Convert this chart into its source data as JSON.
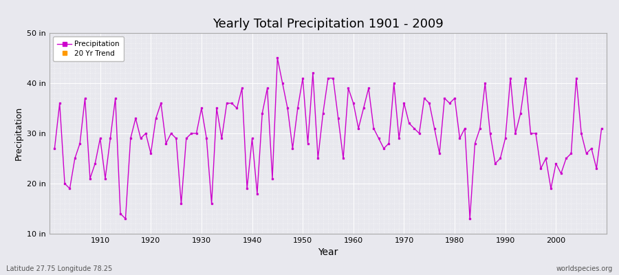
{
  "title": "Yearly Total Precipitation 1901 - 2009",
  "xlabel": "Year",
  "ylabel": "Precipitation",
  "ylim": [
    10,
    50
  ],
  "yticks": [
    10,
    20,
    30,
    40,
    50
  ],
  "ytick_labels": [
    "10 in",
    "20 in",
    "30 in",
    "40 in",
    "50 in"
  ],
  "bg_color": "#e8e8ee",
  "grid_color": "#ffffff",
  "line_color": "#cc00cc",
  "trend_color": "#ff9900",
  "footnote_left": "Latitude 27.75 Longitude 78.25",
  "footnote_right": "worldspecies.org",
  "legend_labels": [
    "Precipitation",
    "20 Yr Trend"
  ],
  "legend_colors": [
    "#cc00cc",
    "#ff9900"
  ],
  "years": [
    1901,
    1902,
    1903,
    1904,
    1905,
    1906,
    1907,
    1908,
    1909,
    1910,
    1911,
    1912,
    1913,
    1914,
    1915,
    1916,
    1917,
    1918,
    1919,
    1920,
    1921,
    1922,
    1923,
    1924,
    1925,
    1926,
    1927,
    1928,
    1929,
    1930,
    1931,
    1932,
    1933,
    1934,
    1935,
    1936,
    1937,
    1938,
    1939,
    1940,
    1941,
    1942,
    1943,
    1944,
    1945,
    1946,
    1947,
    1948,
    1949,
    1950,
    1951,
    1952,
    1953,
    1954,
    1955,
    1956,
    1957,
    1958,
    1959,
    1960,
    1961,
    1962,
    1963,
    1964,
    1965,
    1966,
    1967,
    1968,
    1969,
    1970,
    1971,
    1972,
    1973,
    1974,
    1975,
    1976,
    1977,
    1978,
    1979,
    1980,
    1981,
    1982,
    1983,
    1984,
    1985,
    1986,
    1987,
    1988,
    1989,
    1990,
    1991,
    1992,
    1993,
    1994,
    1995,
    1996,
    1997,
    1998,
    1999,
    2000,
    2001,
    2002,
    2003,
    2004,
    2005,
    2006,
    2007,
    2008,
    2009
  ],
  "values": [
    27,
    36,
    20,
    19,
    25,
    28,
    37,
    21,
    24,
    29,
    21,
    29,
    37,
    14,
    13,
    29,
    33,
    29,
    30,
    26,
    33,
    36,
    28,
    30,
    29,
    16,
    29,
    30,
    30,
    35,
    29,
    16,
    35,
    29,
    36,
    36,
    35,
    39,
    19,
    29,
    18,
    34,
    39,
    21,
    45,
    40,
    35,
    27,
    35,
    41,
    28,
    42,
    25,
    34,
    41,
    41,
    33,
    25,
    39,
    36,
    31,
    35,
    39,
    31,
    29,
    27,
    28,
    40,
    29,
    36,
    32,
    31,
    30,
    37,
    36,
    31,
    26,
    37,
    36,
    37,
    29,
    31,
    13,
    28,
    31,
    40,
    30,
    24,
    25,
    29,
    41,
    30,
    34,
    41,
    30,
    30,
    23,
    25,
    19,
    24,
    22,
    25,
    26,
    41,
    30,
    26,
    27,
    23,
    31
  ],
  "xlim": [
    1900,
    2010
  ],
  "xticks": [
    1910,
    1920,
    1930,
    1940,
    1950,
    1960,
    1970,
    1980,
    1990,
    2000
  ]
}
